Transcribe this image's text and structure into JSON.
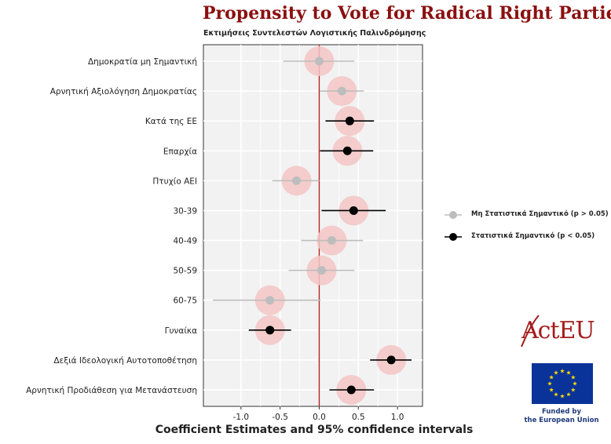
{
  "header": {
    "title": "Propensity to Vote for Radical Right Parties",
    "subtitle": "Εκτιμήσεις Συντελεστών Λογιστικής Παλινδρόμησης"
  },
  "chart_data": {
    "type": "scatter",
    "title": "Propensity to Vote for Radical Right Parties",
    "subtitle": "Εκτιμήσεις Συντελεστών Λογιστικής Παλινδρόμησης",
    "xlabel": "Coefficient Estimates and 95% confidence intervals",
    "ylabel": "",
    "xlim": [
      -1.48,
      1.32
    ],
    "xticks": [
      -1.0,
      -0.5,
      0.0,
      0.5,
      1.0
    ],
    "xtick_labels": [
      "-1.0",
      "-0.5",
      "0.0",
      "0.5",
      "1.0"
    ],
    "reference_line_x": 0,
    "grid": true,
    "legend_position": "right",
    "legend": [
      {
        "key": "ns",
        "label": "Μη Στατιστικά Σημαντικό (p > 0.05)",
        "color": "#bdbdbd"
      },
      {
        "key": "sig",
        "label": "Στατιστικά Σημαντικό (p < 0.05)",
        "color": "#000000"
      }
    ],
    "points": [
      {
        "label": "Δημοκρατία μη Σημαντική",
        "estimate": 0.0,
        "lower": -0.46,
        "upper": 0.45,
        "significant": false
      },
      {
        "label": "Αρνητική Αξιολόγηση Δημοκρατίας",
        "estimate": 0.29,
        "lower": 0.01,
        "upper": 0.57,
        "significant": false
      },
      {
        "label": "Κατά της ΕΕ",
        "estimate": 0.39,
        "lower": 0.08,
        "upper": 0.7,
        "significant": true
      },
      {
        "label": "Επαρχία",
        "estimate": 0.36,
        "lower": 0.01,
        "upper": 0.69,
        "significant": true
      },
      {
        "label": "Πτυχίο ΑΕΙ",
        "estimate": -0.29,
        "lower": -0.6,
        "upper": 0.0,
        "significant": false
      },
      {
        "label": "30-39",
        "estimate": 0.44,
        "lower": 0.03,
        "upper": 0.85,
        "significant": true
      },
      {
        "label": "40-49",
        "estimate": 0.16,
        "lower": -0.23,
        "upper": 0.56,
        "significant": false
      },
      {
        "label": "50-59",
        "estimate": 0.03,
        "lower": -0.39,
        "upper": 0.45,
        "significant": false
      },
      {
        "label": "60-75",
        "estimate": -0.63,
        "lower": -1.36,
        "upper": 0.02,
        "significant": false
      },
      {
        "label": "Γυναίκα",
        "estimate": -0.63,
        "lower": -0.9,
        "upper": -0.36,
        "significant": true
      },
      {
        "label": "Δεξιά Ιδεολογική Αυτοτοποθέτηση",
        "estimate": 0.92,
        "lower": 0.65,
        "upper": 1.18,
        "significant": true
      },
      {
        "label": "Αρνητική Προδιάθεση για Μετανάστευση",
        "estimate": 0.41,
        "lower": 0.13,
        "upper": 0.7,
        "significant": true
      }
    ]
  },
  "colors": {
    "title": "#8b0f0f",
    "panel_background": "#f2f2f2",
    "grid": "#ffffff",
    "reference_line": "#b22222",
    "halo": "#f4c6c6",
    "significant": "#000000",
    "not_significant": "#bdbdbd"
  },
  "branding": {
    "logo_text": "ActEU",
    "funding_line1": "Funded by",
    "funding_line2": "the European Union"
  }
}
